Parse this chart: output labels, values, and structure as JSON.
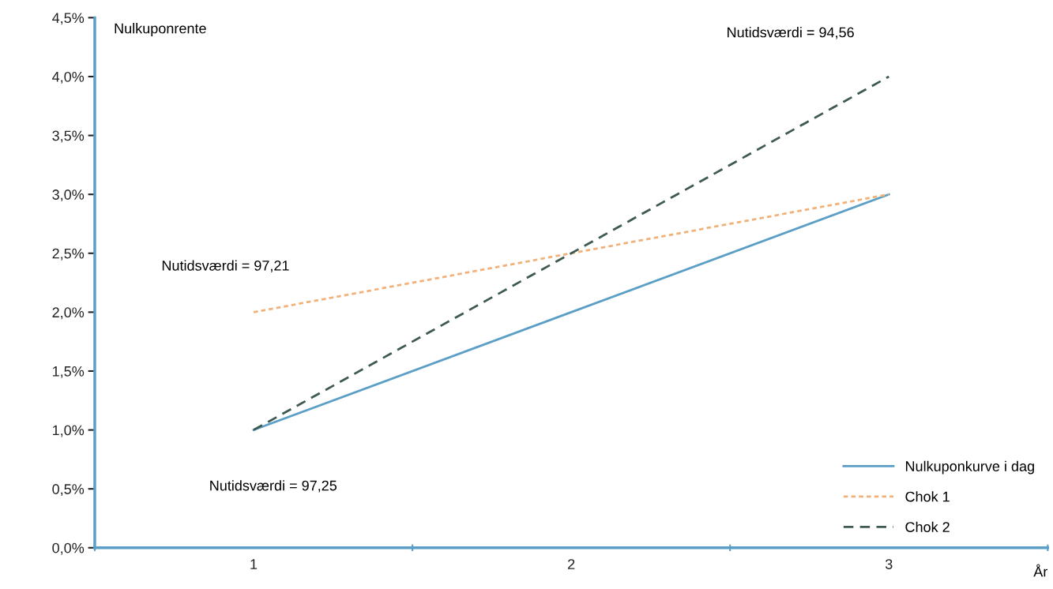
{
  "chart_data": {
    "type": "line",
    "ylabel": "Nulkuponrente",
    "xlabel": "År",
    "categories": [
      "1",
      "2",
      "3"
    ],
    "series": [
      {
        "name": "Nulkuponkurve i dag",
        "color": "#5b9fc6",
        "values": [
          1.0,
          2.0,
          3.0
        ],
        "line_style": "solid"
      },
      {
        "name": "Chok 1",
        "color": "#f0b27a",
        "values": [
          2.0,
          2.5,
          3.0
        ],
        "line_style": "dotted"
      },
      {
        "name": "Chok 2",
        "color": "#3f5a50",
        "values": [
          1.0,
          2.5,
          4.0
        ],
        "line_style": "dashed"
      }
    ],
    "ylim": [
      0,
      4.5
    ],
    "yticks": [
      {
        "value": 0,
        "label": "0,0%"
      },
      {
        "value": 0.5,
        "label": "0,5%"
      },
      {
        "value": 1.0,
        "label": "1,0%"
      },
      {
        "value": 1.5,
        "label": "1,5%"
      },
      {
        "value": 2.0,
        "label": "2,0%"
      },
      {
        "value": 2.5,
        "label": "2,5%"
      },
      {
        "value": 3.0,
        "label": "3,0%"
      },
      {
        "value": 3.5,
        "label": "3,5%"
      },
      {
        "value": 4.0,
        "label": "4,0%"
      },
      {
        "value": 4.5,
        "label": "4,5%"
      }
    ],
    "annotations": [
      "Nutidsværdi = 94,56",
      "Nutidsværdi = 97,21",
      "Nutidsværdi = 97,25"
    ],
    "grid": false,
    "legend": "bottom right",
    "marker": "none"
  }
}
